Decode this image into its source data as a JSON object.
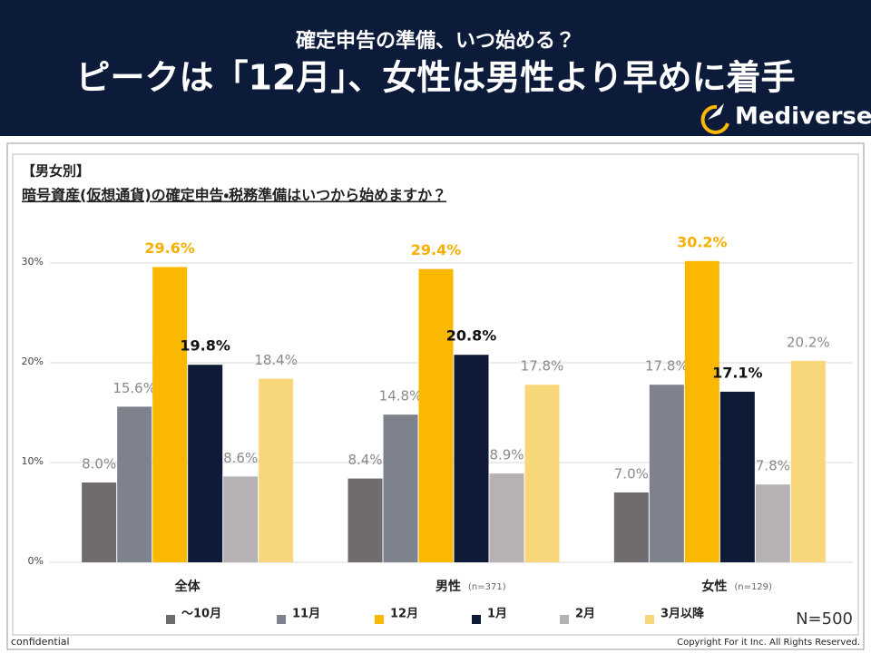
{
  "header": {
    "subtitle": "確定申告の準備、いつ始める？",
    "title": "ピークは「12月」、女性は男性より早めに着手",
    "logo": "Mediverse"
  },
  "chart_data": {
    "type": "bar",
    "title": "【男女別】",
    "subtitle": "暗号資産(仮想通貨)の確定申告・税務準備はいつから始めますか？",
    "categories": [
      "全体",
      "男性",
      "女性"
    ],
    "category_notes": [
      null,
      "(n=371)",
      "(n=129)"
    ],
    "series": [
      {
        "name": "～10月",
        "color": "#6f6b6e",
        "label_color": "#8a8a8a",
        "values": [
          8.0,
          8.4,
          7.0
        ],
        "value_labels": [
          "8.0%",
          "8.4%",
          "7.0%"
        ]
      },
      {
        "name": "11月",
        "color": "#7e828d",
        "label_color": "#8a8a8a",
        "values": [
          15.6,
          14.8,
          17.8
        ],
        "value_labels": [
          "15.6%",
          "14.8%",
          "17.8%"
        ]
      },
      {
        "name": "12月",
        "color": "#fbb800",
        "label_color": "#f5b000",
        "values": [
          29.6,
          29.4,
          30.2
        ],
        "value_labels": [
          "29.6%",
          "29.4%",
          "30.2%"
        ]
      },
      {
        "name": "1月",
        "color": "#0f1a36",
        "label_color": "#111111",
        "values": [
          19.8,
          20.8,
          17.1
        ],
        "value_labels": [
          "19.8%",
          "20.8%",
          "17.1%"
        ]
      },
      {
        "name": "2月",
        "color": "#b5b1b4",
        "label_color": "#8a8a8a",
        "values": [
          8.6,
          8.9,
          7.8
        ],
        "value_labels": [
          "8.6%",
          "8.9%",
          "7.8%"
        ]
      },
      {
        "name": "3月以降",
        "color": "#f8d77a",
        "label_color": "#8a8a8a",
        "values": [
          18.4,
          17.8,
          20.2
        ],
        "value_labels": [
          "18.4%",
          "17.8%",
          "20.2%"
        ]
      }
    ],
    "ylim": [
      0,
      33
    ],
    "yticks": [
      {
        "value": 0,
        "label": "0%"
      },
      {
        "value": 10,
        "label": "10%"
      },
      {
        "value": 20,
        "label": "20%"
      },
      {
        "value": 30,
        "label": "30%"
      }
    ],
    "grid": true,
    "annotation": "N=500"
  },
  "footer": {
    "left": "confidential",
    "right": "Copyright For it Inc. All Rights Reserved."
  }
}
